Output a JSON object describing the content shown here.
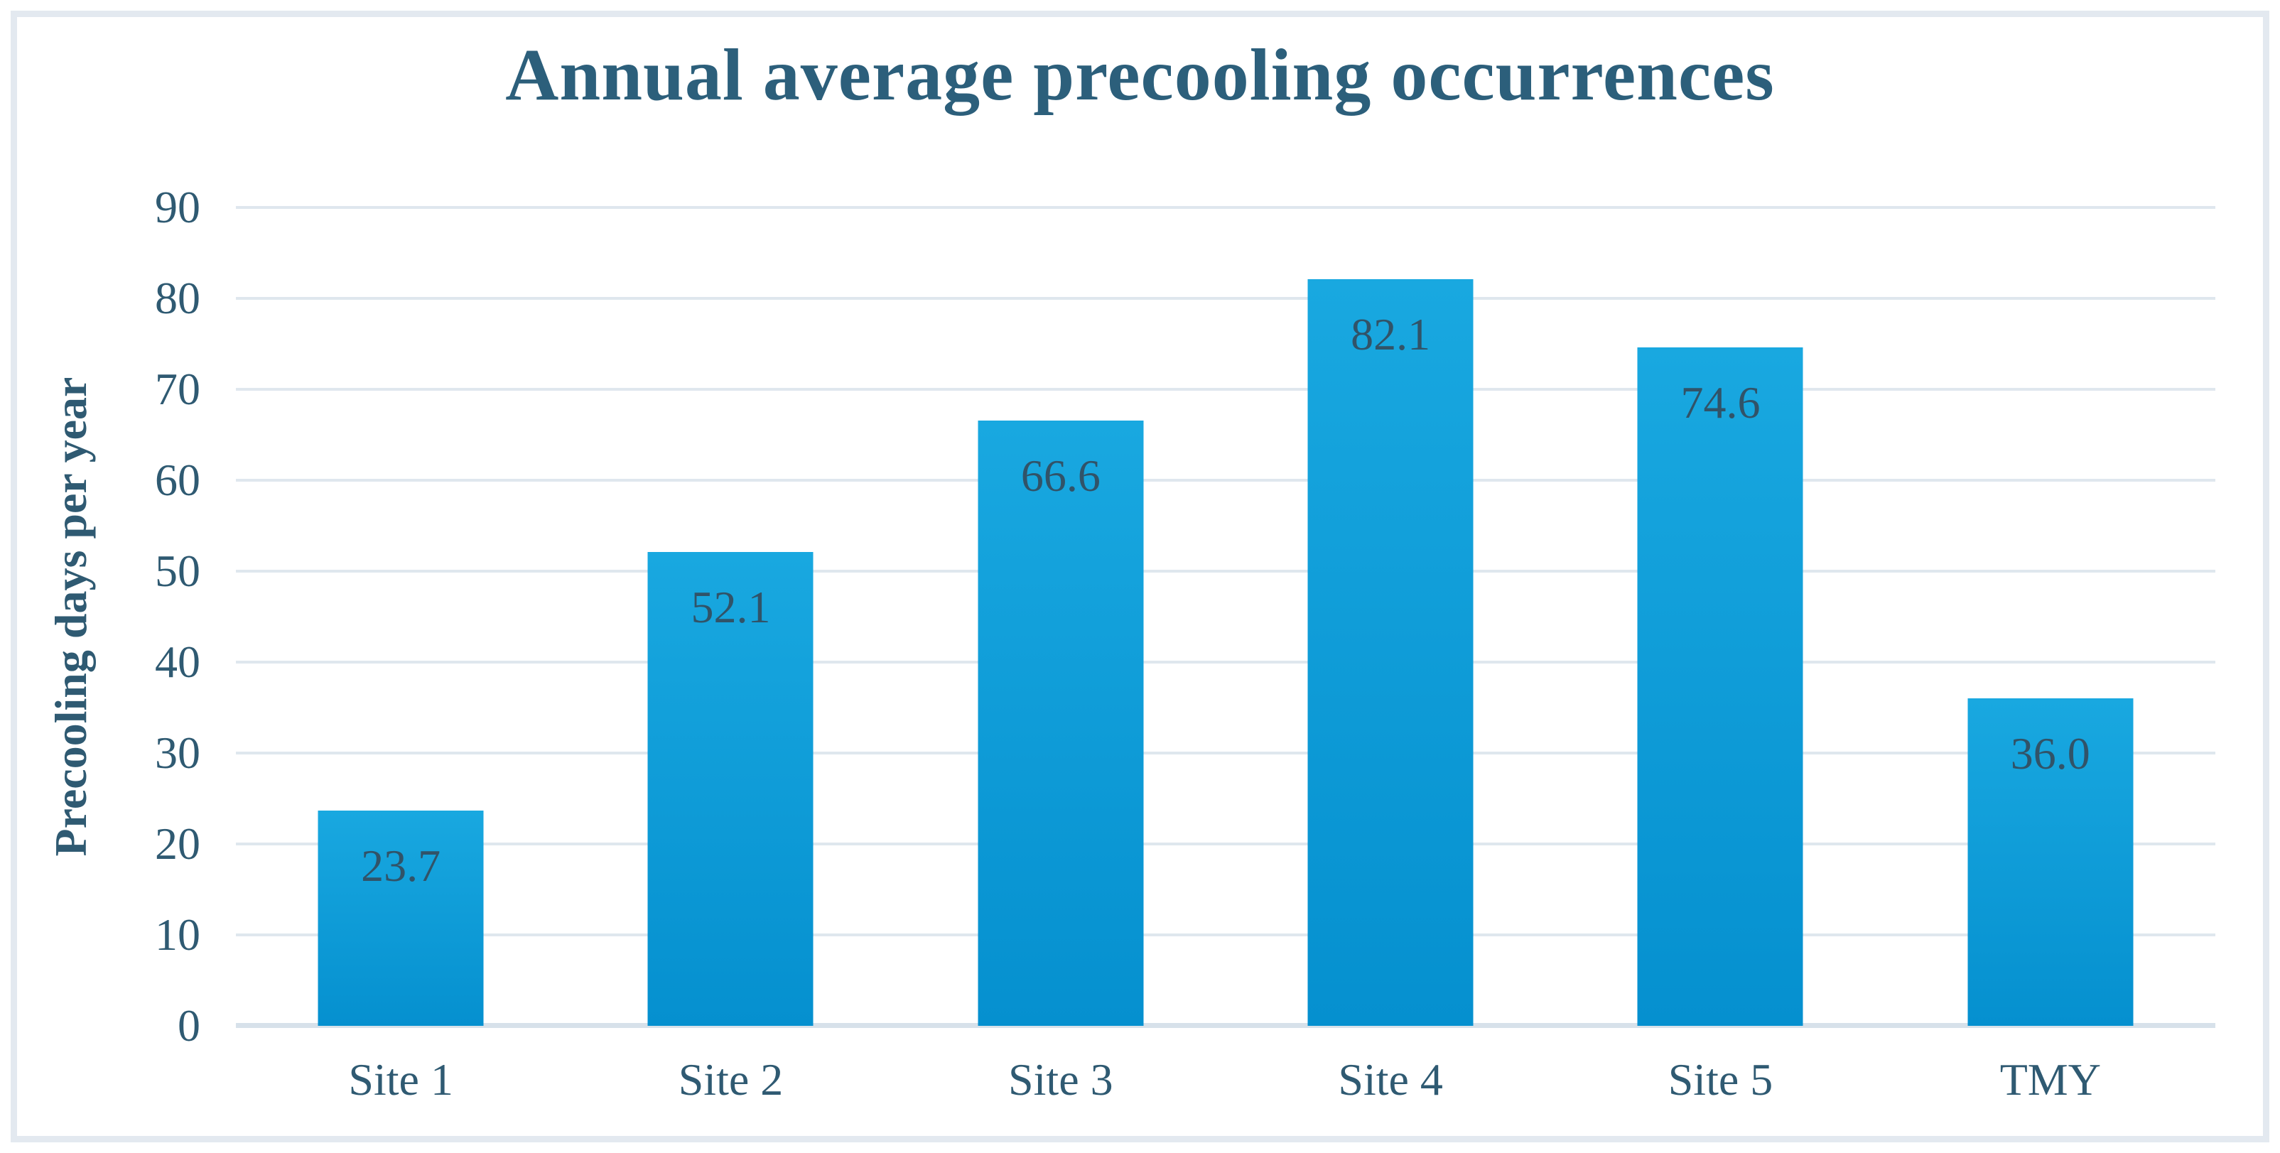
{
  "chart_data": {
    "type": "bar",
    "title": "Annual average precooling occurrences",
    "xlabel": "",
    "ylabel": "Precooling days per year",
    "categories": [
      "Site 1",
      "Site 2",
      "Site 3",
      "Site 4",
      "Site 5",
      "TMY"
    ],
    "values": [
      23.7,
      52.1,
      66.6,
      82.1,
      74.6,
      36.0
    ],
    "value_labels": [
      "23.7",
      "52.1",
      "66.6",
      "82.1",
      "74.6",
      "36.0"
    ],
    "ylim": [
      0,
      90
    ],
    "yticks": [
      0,
      10,
      20,
      30,
      40,
      50,
      60,
      70,
      80,
      90
    ],
    "grid": "horizontal-only",
    "legend": "none",
    "data_label_position": "inside-end"
  },
  "colors": {
    "frame_border": "#e3e9f0",
    "gridline": "#dfe7ee",
    "axis_line": "#d7e1ea",
    "title_text": "#2c5f7b",
    "axis_text": "#2f5a72",
    "value_label_text": "#315368",
    "bar_gradient_top": "#19a8e0",
    "bar_gradient_bottom": "#0590cf"
  }
}
